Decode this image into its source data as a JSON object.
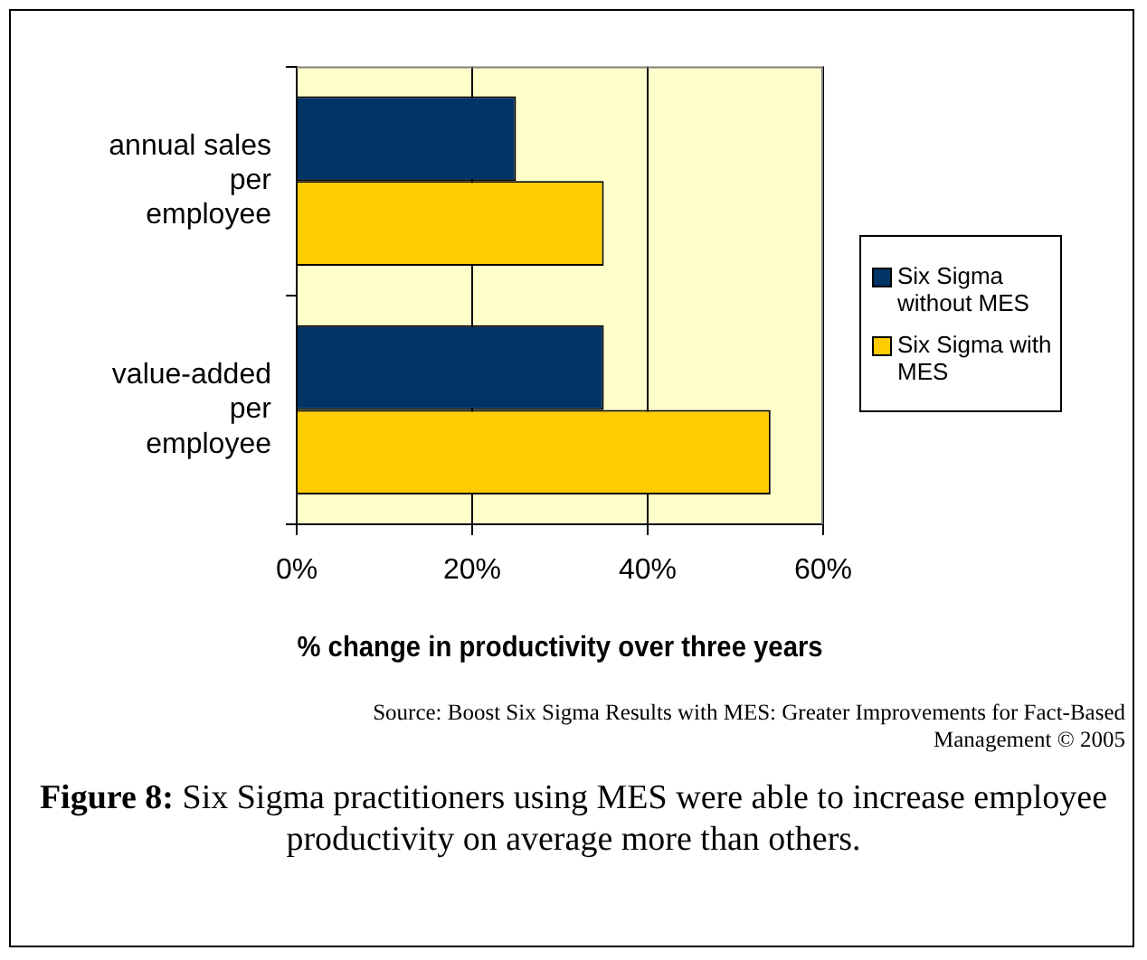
{
  "chart_data": {
    "type": "bar",
    "orientation": "horizontal",
    "xlabel": "% change in productivity over three years",
    "categories": [
      "annual sales\nper\nemployee",
      "value-added\nper\nemployee"
    ],
    "series": [
      {
        "name": "Six Sigma without MES",
        "color": "#003366",
        "values": [
          25,
          35
        ]
      },
      {
        "name": "Six Sigma with MES",
        "color": "#ffcc00",
        "values": [
          35,
          54
        ]
      }
    ],
    "xlim": [
      0,
      60
    ],
    "xticks": [
      {
        "value": 0,
        "label": "0%"
      },
      {
        "value": 20,
        "label": "20%"
      },
      {
        "value": 40,
        "label": "40%"
      },
      {
        "value": 60,
        "label": "60%"
      }
    ],
    "grid": "x",
    "legend": "right",
    "annotations": [
      "Source: Boost Six Sigma Results with MES: Greater Improvements for Fact-Based Management © 2005",
      "Figure 8: Six Sigma practitioners using MES were able to increase employee productivity on average more than others."
    ]
  }
}
